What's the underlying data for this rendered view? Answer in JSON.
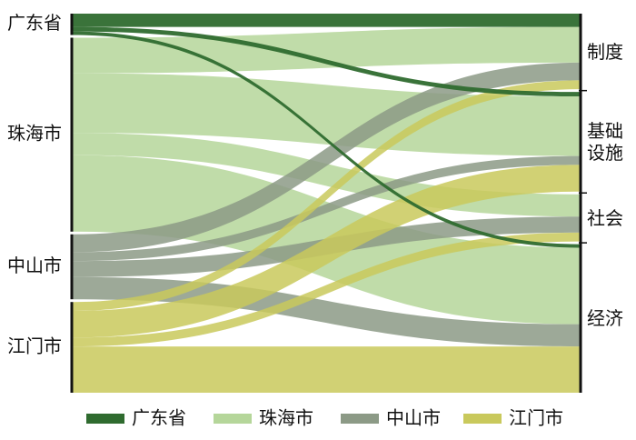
{
  "chart_data": {
    "type": "sankey",
    "categories": [
      "制度",
      "基础设施",
      "社会",
      "经济"
    ],
    "series": [
      {
        "name": "广东省",
        "color": "#2f6b2f",
        "values": [
          15,
          5,
          0,
          4
        ]
      },
      {
        "name": "珠海市",
        "color": "#b5d69a",
        "values": [
          40,
          67,
          25,
          86
        ]
      },
      {
        "name": "中山市",
        "color": "#8c9a86",
        "values": [
          20,
          10,
          18,
          25
        ]
      },
      {
        "name": "江门市",
        "color": "#c9c95c",
        "values": [
          10,
          30,
          10,
          52
        ]
      }
    ]
  }
}
